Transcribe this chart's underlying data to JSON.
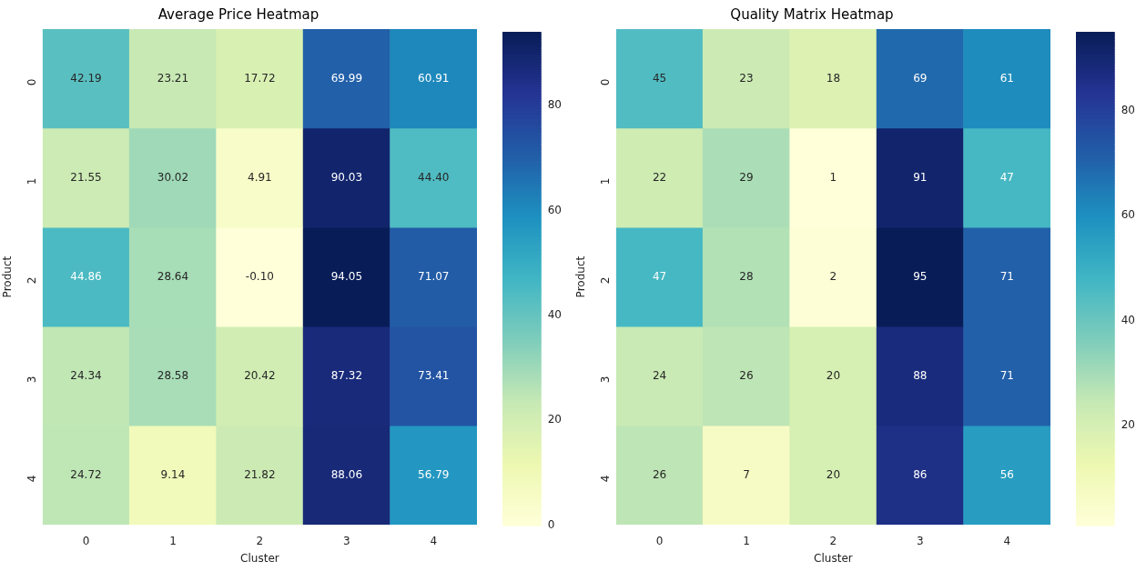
{
  "chart_data": [
    {
      "type": "heatmap",
      "title": "Average Price Heatmap",
      "xlabel": "Cluster",
      "ylabel": "Product",
      "categories": [
        "0",
        "1",
        "2",
        "3",
        "4"
      ],
      "y_categories": [
        "0",
        "1",
        "2",
        "3",
        "4"
      ],
      "cells": [
        [
          42.19,
          23.21,
          17.72,
          69.99,
          60.91
        ],
        [
          21.55,
          30.02,
          4.91,
          90.03,
          44.4
        ],
        [
          44.86,
          28.64,
          -0.1,
          94.05,
          71.07
        ],
        [
          24.34,
          28.58,
          20.42,
          87.32,
          73.41
        ],
        [
          24.72,
          9.14,
          21.82,
          88.06,
          56.79
        ]
      ],
      "cell_labels": [
        [
          "42.19",
          "23.21",
          "17.72",
          "69.99",
          "60.91"
        ],
        [
          "21.55",
          "30.02",
          "4.91",
          "90.03",
          "44.40"
        ],
        [
          "44.86",
          "28.64",
          "-0.10",
          "94.05",
          "71.07"
        ],
        [
          "24.34",
          "28.58",
          "20.42",
          "87.32",
          "73.41"
        ],
        [
          "24.72",
          "9.14",
          "21.82",
          "88.06",
          "56.79"
        ]
      ],
      "clim": [
        -0.1,
        94.05
      ],
      "cticks": [
        0,
        20,
        40,
        60,
        80
      ]
    },
    {
      "type": "heatmap",
      "title": "Quality Matrix Heatmap",
      "xlabel": "Cluster",
      "ylabel": "Product",
      "categories": [
        "0",
        "1",
        "2",
        "3",
        "4"
      ],
      "y_categories": [
        "0",
        "1",
        "2",
        "3",
        "4"
      ],
      "cells": [
        [
          45,
          23,
          18,
          69,
          61
        ],
        [
          22,
          29,
          1,
          91,
          47
        ],
        [
          47,
          28,
          2,
          95,
          71
        ],
        [
          24,
          26,
          20,
          88,
          71
        ],
        [
          26,
          7,
          20,
          86,
          56
        ]
      ],
      "cell_labels": [
        [
          "45",
          "23",
          "18",
          "69",
          "61"
        ],
        [
          "22",
          "29",
          "1",
          "91",
          "47"
        ],
        [
          "47",
          "28",
          "2",
          "95",
          "71"
        ],
        [
          "24",
          "26",
          "20",
          "88",
          "71"
        ],
        [
          "26",
          "7",
          "20",
          "86",
          "56"
        ]
      ],
      "clim": [
        1,
        95
      ],
      "cticks": [
        20,
        40,
        60,
        80
      ]
    }
  ]
}
